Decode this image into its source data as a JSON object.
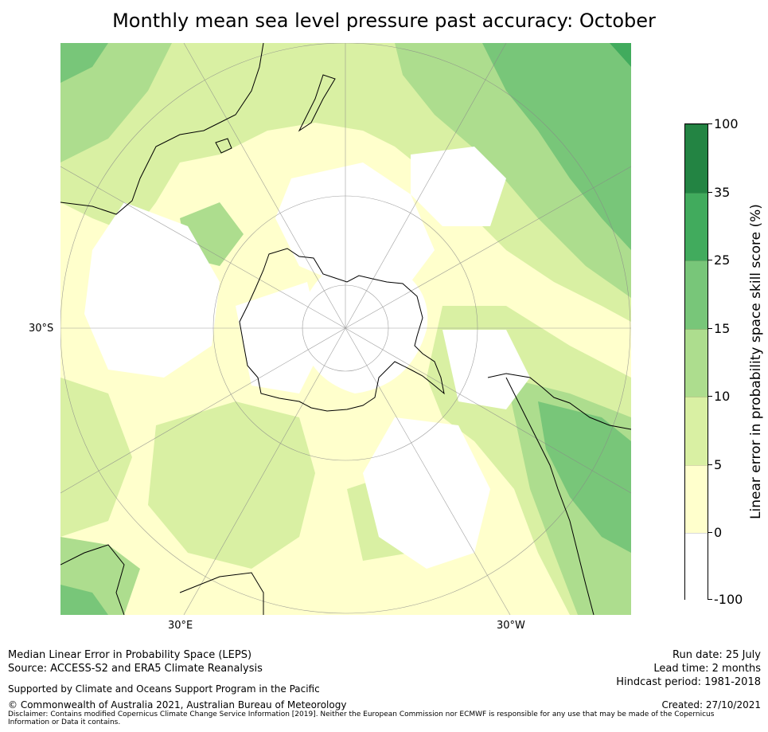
{
  "title": "Monthly mean sea level pressure past accuracy: October",
  "map": {
    "projection": "south-polar-stereographic",
    "lat_labels": [
      "30°S"
    ],
    "lon_labels": [
      "30°E",
      "30°W"
    ],
    "shading_colors": {
      "below_0": "#ffffff",
      "0_5": "#ffffcc",
      "5_10": "#d9f0a3",
      "10_15": "#addd8e",
      "15_25": "#78c679",
      "25_35": "#41ab5d",
      "35_100": "#238443"
    }
  },
  "colorbar": {
    "label": "Linear error in probability space skill score (%)",
    "ticks": [
      "100",
      "35",
      "25",
      "15",
      "10",
      "5",
      "0",
      "-100"
    ],
    "bins": [
      {
        "range": "35 to 100",
        "color": "#238443"
      },
      {
        "range": "25 to 35",
        "color": "#41ab5d"
      },
      {
        "range": "15 to 25",
        "color": "#78c679"
      },
      {
        "range": "10 to 15",
        "color": "#addd8e"
      },
      {
        "range": "5 to 10",
        "color": "#d9f0a3"
      },
      {
        "range": "0 to 5",
        "color": "#ffffcc"
      },
      {
        "range": "-100 to 0",
        "color": "#ffffff"
      }
    ]
  },
  "footer": {
    "line1": "Median Linear Error in Probability Space (LEPS)",
    "line2": "Source: ACCESS-S2 and ERA5 Climate Reanalysis",
    "support": "Supported by Climate and Oceans Support Program in the Pacific",
    "copyright": "© Commonwealth of Australia 2021, Australian Bureau of Meteorology",
    "disclaimer_1": "Disclaimer: Contains modified Copernicus Climate Change Service Information [2019]. Neither the European Commission nor ECMWF is responsible for any use that may be made of the Copernicus",
    "disclaimer_2": "Information or Data it contains.",
    "run_date": "Run date: 25 July",
    "lead_time": "Lead time: 2 months",
    "hindcast": "Hindcast period: 1981-2018",
    "created": "Created: 27/10/2021"
  }
}
